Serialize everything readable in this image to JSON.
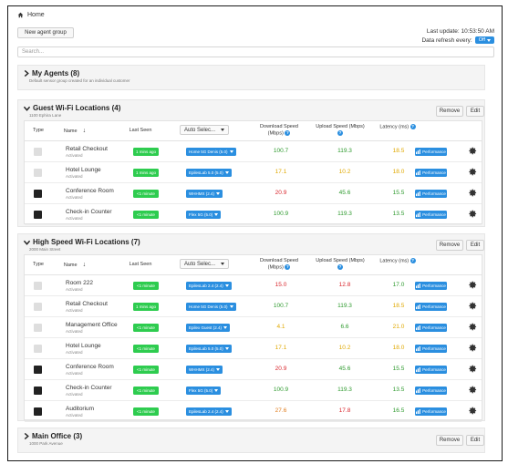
{
  "breadcrumb": {
    "label": "Home"
  },
  "toolbar": {
    "new_group_label": "New agent group"
  },
  "status": {
    "last_update": "Last update: 10:53:50 AM",
    "refresh_label": "Data refresh every:",
    "refresh_value": "Off"
  },
  "search": {
    "placeholder": "Search..."
  },
  "groups": {
    "my_agents": {
      "title": "My Agents (8)",
      "subtitle": "Default sensor group created for an individual customer"
    },
    "guest": {
      "title": "Guest Wi-Fi Locations (4)",
      "subtitle": "1100 Ephira Lane",
      "remove_label": "Remove",
      "edit_label": "Edit",
      "headers": {
        "type": "Type",
        "name": "Name",
        "last_seen": "Last Seen",
        "auto_select": "Auto Selec...",
        "download": "Download Speed (Mbps)",
        "upload": "Upload Speed (Mbps)",
        "latency": "Latency (ms)"
      },
      "rows": [
        {
          "name": "Retail Checkout",
          "status": "Activated",
          "type": "light",
          "seen": "1 mins ago",
          "server": "Home 5G Denis (5.0)",
          "download": "100.7",
          "upload": "119.3",
          "latency": "18.5",
          "dl_color": "#2e9a2e",
          "ul_color": "#2e9a2e",
          "lat_color": "#e0a800",
          "perf": "Performance"
        },
        {
          "name": "Hotel Lounge",
          "status": "Activated",
          "type": "light",
          "seen": "1 mins ago",
          "server": "EpilesLab 5.0 (5.0)",
          "download": "17.1",
          "upload": "10.2",
          "latency": "18.0",
          "dl_color": "#e0a800",
          "ul_color": "#e0a800",
          "lat_color": "#e0a800",
          "perf": "Performance"
        },
        {
          "name": "Conference Room",
          "status": "Activated",
          "type": "dark",
          "seen": "<1 minute",
          "server": "WHHMX (2.4)",
          "download": "20.9",
          "upload": "45.6",
          "latency": "15.5",
          "dl_color": "#d9262c",
          "ul_color": "#2e9a2e",
          "lat_color": "#2e9a2e",
          "perf": "Performance"
        },
        {
          "name": "Check-in Counter",
          "status": "Activated",
          "type": "dark",
          "seen": "<1 minute",
          "server": "Flex 5G (5.0)",
          "download": "100.9",
          "upload": "119.3",
          "latency": "13.5",
          "dl_color": "#2e9a2e",
          "ul_color": "#2e9a2e",
          "lat_color": "#2e9a2e",
          "perf": "Performance"
        }
      ]
    },
    "highspeed": {
      "title": "High Speed Wi-Fi Locations (7)",
      "subtitle": "2000 Main Street",
      "remove_label": "Remove",
      "edit_label": "Edit",
      "headers": {
        "type": "Type",
        "name": "Name",
        "last_seen": "Last Seen",
        "auto_select": "Auto Selec...",
        "download": "Download Speed (Mbps)",
        "upload": "Upload Speed (Mbps)",
        "latency": "Latency (ms)"
      },
      "rows": [
        {
          "name": "Room 222",
          "status": "Activated",
          "type": "light",
          "seen": "<1 minute",
          "server": "EpilesLab 2.4 (2.4)",
          "download": "15.0",
          "upload": "12.8",
          "latency": "17.0",
          "dl_color": "#d9262c",
          "ul_color": "#d9262c",
          "lat_color": "#2e9a2e",
          "perf": "Performance"
        },
        {
          "name": "Retail Checkout",
          "status": "Activated",
          "type": "light",
          "seen": "1 mins ago",
          "server": "Home 5G Denis (5.0)",
          "download": "100.7",
          "upload": "119.3",
          "latency": "18.5",
          "dl_color": "#2e9a2e",
          "ul_color": "#2e9a2e",
          "lat_color": "#e0a800",
          "perf": "Performance"
        },
        {
          "name": "Management Office",
          "status": "Activated",
          "type": "light",
          "seen": "<1 minute",
          "server": "Epilex Guest (2.4)",
          "download": "4.1",
          "upload": "6.6",
          "latency": "21.0",
          "dl_color": "#e0a800",
          "ul_color": "#2e9a2e",
          "lat_color": "#e0a800",
          "perf": "Performance"
        },
        {
          "name": "Hotel Lounge",
          "status": "Activated",
          "type": "light",
          "seen": "<1 minute",
          "server": "EpilesLab 5.0 (5.0)",
          "download": "17.1",
          "upload": "10.2",
          "latency": "18.0",
          "dl_color": "#e0a800",
          "ul_color": "#e0a800",
          "lat_color": "#e0a800",
          "perf": "Performance"
        },
        {
          "name": "Conference Room",
          "status": "Activated",
          "type": "dark",
          "seen": "<1 minute",
          "server": "WHHMX (2.4)",
          "download": "20.9",
          "upload": "45.6",
          "latency": "15.5",
          "dl_color": "#d9262c",
          "ul_color": "#2e9a2e",
          "lat_color": "#2e9a2e",
          "perf": "Performance"
        },
        {
          "name": "Check-in Counter",
          "status": "Activated",
          "type": "dark",
          "seen": "<1 minute",
          "server": "Flex 5G (5.0)",
          "download": "100.9",
          "upload": "119.3",
          "latency": "13.5",
          "dl_color": "#2e9a2e",
          "ul_color": "#2e9a2e",
          "lat_color": "#2e9a2e",
          "perf": "Performance"
        },
        {
          "name": "Auditorium",
          "status": "Activated",
          "type": "dark",
          "seen": "<1 minute",
          "server": "EpilesLab 2.4 (2.4)",
          "download": "27.6",
          "upload": "17.8",
          "latency": "16.5",
          "dl_color": "#e07b1a",
          "ul_color": "#d9262c",
          "lat_color": "#2e9a2e",
          "perf": "Performance"
        }
      ]
    },
    "main_office": {
      "title": "Main Office (3)",
      "subtitle": "1000 Park Avenue",
      "remove_label": "Remove",
      "edit_label": "Edit"
    }
  }
}
